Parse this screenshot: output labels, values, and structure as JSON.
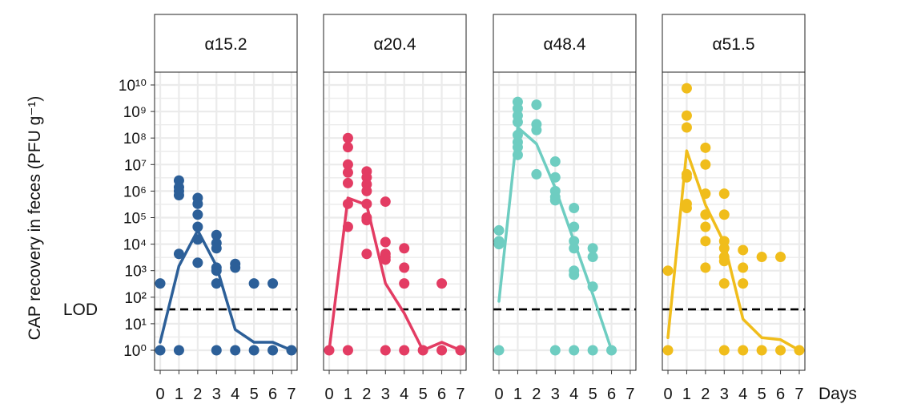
{
  "chart_data": {
    "type": "scatter",
    "ylabel": "CAP recovery in feces (PFU g⁻¹)",
    "xlabel": "Days",
    "y_scale": "log10",
    "ylim": [
      1,
      10000000000
    ],
    "xlim": [
      -0.3,
      7.3
    ],
    "x_ticks": [
      "0",
      "1",
      "2",
      "3",
      "4",
      "5",
      "6",
      "7"
    ],
    "y_ticks": [
      "10⁰",
      "10¹",
      "10²",
      "10³",
      "10⁴",
      "10⁵",
      "10⁶",
      "10⁷",
      "10⁸",
      "10⁹",
      "10¹⁰"
    ],
    "lod_label": "LOD",
    "lod_value": 35,
    "grid": true,
    "panels": [
      {
        "title": "α15.2",
        "color": "#2c5f98",
        "points": [
          [
            0,
            330
          ],
          [
            0,
            1
          ],
          [
            1,
            2500000
          ],
          [
            1,
            1400000
          ],
          [
            1,
            1000000
          ],
          [
            1,
            700000
          ],
          [
            1,
            4300
          ],
          [
            1,
            1
          ],
          [
            2,
            550000
          ],
          [
            2,
            330000
          ],
          [
            2,
            130000
          ],
          [
            2,
            45000
          ],
          [
            2,
            15000
          ],
          [
            2,
            2000
          ],
          [
            3,
            22000
          ],
          [
            3,
            11000
          ],
          [
            3,
            7000
          ],
          [
            3,
            1300
          ],
          [
            3,
            1000
          ],
          [
            3,
            330
          ],
          [
            3,
            1
          ],
          [
            4,
            1800
          ],
          [
            4,
            1300
          ],
          [
            4,
            1
          ],
          [
            5,
            330
          ],
          [
            5,
            1
          ],
          [
            6,
            330
          ],
          [
            6,
            1
          ],
          [
            7,
            1
          ]
        ],
        "mean_line": [
          [
            0,
            2
          ],
          [
            1,
            1500
          ],
          [
            2,
            33000
          ],
          [
            3,
            1500
          ],
          [
            4,
            6
          ],
          [
            5,
            2
          ],
          [
            6,
            2
          ],
          [
            7,
            1
          ]
        ]
      },
      {
        "title": "α20.4",
        "color": "#e33c63",
        "points": [
          [
            0,
            1
          ],
          [
            1,
            100000000
          ],
          [
            1,
            45000000
          ],
          [
            1,
            10000000
          ],
          [
            1,
            5000000
          ],
          [
            1,
            2000000
          ],
          [
            1,
            330000
          ],
          [
            1,
            45000
          ],
          [
            1,
            1
          ],
          [
            2,
            5500000
          ],
          [
            2,
            3300000
          ],
          [
            2,
            1800000
          ],
          [
            2,
            1000000
          ],
          [
            2,
            330000
          ],
          [
            2,
            100000
          ],
          [
            2,
            80000
          ],
          [
            2,
            4300
          ],
          [
            3,
            400000
          ],
          [
            3,
            12000
          ],
          [
            3,
            4300
          ],
          [
            3,
            3300
          ],
          [
            3,
            2600
          ],
          [
            3,
            1
          ],
          [
            4,
            7000
          ],
          [
            4,
            1300
          ],
          [
            4,
            330
          ],
          [
            4,
            1
          ],
          [
            5,
            1
          ],
          [
            6,
            330
          ],
          [
            6,
            1
          ],
          [
            7,
            1
          ]
        ],
        "mean_line": [
          [
            0,
            1
          ],
          [
            1,
            550000
          ],
          [
            2,
            300000
          ],
          [
            3,
            330
          ],
          [
            4,
            25
          ],
          [
            5,
            1
          ],
          [
            6,
            2
          ],
          [
            7,
            1
          ]
        ]
      },
      {
        "title": "α48.4",
        "color": "#6ecdc1",
        "points": [
          [
            0,
            33000
          ],
          [
            0,
            13000
          ],
          [
            0,
            10000
          ],
          [
            0,
            1
          ],
          [
            1,
            2300000000
          ],
          [
            1,
            1300000000
          ],
          [
            1,
            700000000
          ],
          [
            1,
            400000000
          ],
          [
            1,
            130000000
          ],
          [
            1,
            70000000
          ],
          [
            1,
            45000000
          ],
          [
            1,
            23000000
          ],
          [
            2,
            1800000000
          ],
          [
            2,
            330000000
          ],
          [
            2,
            200000000
          ],
          [
            2,
            4300000
          ],
          [
            3,
            13000000
          ],
          [
            3,
            3300000
          ],
          [
            3,
            1000000
          ],
          [
            3,
            600000
          ],
          [
            3,
            450000
          ],
          [
            3,
            1
          ],
          [
            4,
            230000
          ],
          [
            4,
            45000
          ],
          [
            4,
            13000
          ],
          [
            4,
            7000
          ],
          [
            4,
            1000
          ],
          [
            4,
            700
          ],
          [
            4,
            1
          ],
          [
            5,
            7000
          ],
          [
            5,
            3300
          ],
          [
            5,
            250
          ],
          [
            5,
            1
          ],
          [
            6,
            1
          ]
        ],
        "mean_line": [
          [
            0,
            70
          ],
          [
            1,
            250000000
          ],
          [
            2,
            60000000
          ],
          [
            3,
            1300000
          ],
          [
            4,
            13000
          ],
          [
            5,
            130
          ],
          [
            6,
            1
          ]
        ]
      },
      {
        "title": "α51.5",
        "color": "#f0bd1b",
        "points": [
          [
            0,
            1000
          ],
          [
            0,
            1
          ],
          [
            1,
            7500000000
          ],
          [
            1,
            700000000
          ],
          [
            1,
            250000000
          ],
          [
            1,
            4300000
          ],
          [
            1,
            3300000
          ],
          [
            1,
            330000
          ],
          [
            1,
            230000
          ],
          [
            2,
            43000000
          ],
          [
            2,
            10000000
          ],
          [
            2,
            800000
          ],
          [
            2,
            130000
          ],
          [
            2,
            45000
          ],
          [
            2,
            13000
          ],
          [
            2,
            1300
          ],
          [
            3,
            800000
          ],
          [
            3,
            130000
          ],
          [
            3,
            13000
          ],
          [
            3,
            7000
          ],
          [
            3,
            3300
          ],
          [
            3,
            2300
          ],
          [
            3,
            330
          ],
          [
            3,
            1
          ],
          [
            4,
            6000
          ],
          [
            4,
            1300
          ],
          [
            4,
            330
          ],
          [
            4,
            1
          ],
          [
            5,
            3300
          ],
          [
            5,
            1
          ],
          [
            6,
            3300
          ],
          [
            6,
            1
          ],
          [
            7,
            1
          ]
        ],
        "mean_line": [
          [
            0,
            3
          ],
          [
            1,
            33000000
          ],
          [
            2,
            300000
          ],
          [
            3,
            11000
          ],
          [
            4,
            15
          ],
          [
            5,
            3
          ],
          [
            6,
            2.5
          ],
          [
            7,
            1
          ]
        ]
      }
    ]
  }
}
